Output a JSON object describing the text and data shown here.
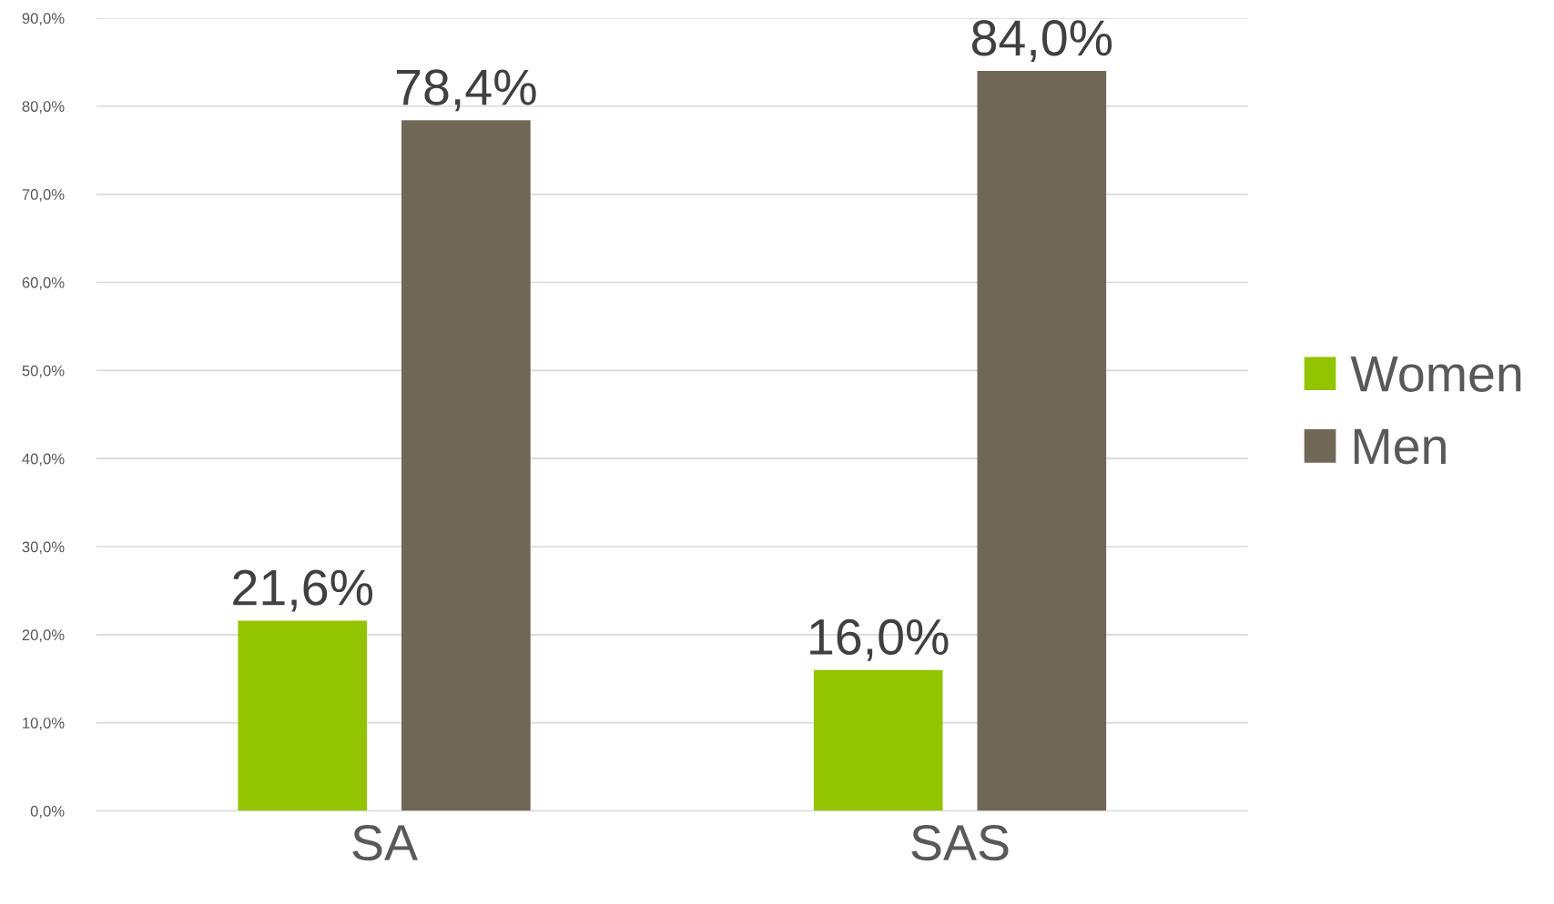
{
  "chart_data": {
    "type": "bar",
    "categories": [
      "SA",
      "SAS"
    ],
    "series": [
      {
        "name": "Women",
        "color": "#92c400",
        "values": [
          21.6,
          16.0
        ],
        "value_labels": [
          "21,6%",
          "16,0%"
        ]
      },
      {
        "name": "Men",
        "color": "#716757",
        "values": [
          78.4,
          84.0
        ],
        "value_labels": [
          "78,4%",
          "84,0%"
        ]
      }
    ],
    "ylim": [
      0,
      90
    ],
    "yticks": [
      {
        "value": 0,
        "label": "0,0%"
      },
      {
        "value": 10,
        "label": "10,0%"
      },
      {
        "value": 20,
        "label": "20,0%"
      },
      {
        "value": 30,
        "label": "30,0%"
      },
      {
        "value": 40,
        "label": "40,0%"
      },
      {
        "value": 50,
        "label": "50,0%"
      },
      {
        "value": 60,
        "label": "60,0%"
      },
      {
        "value": 70,
        "label": "70,0%"
      },
      {
        "value": 80,
        "label": "80,0%"
      },
      {
        "value": 90,
        "label": "90,0%"
      }
    ],
    "grid": "y",
    "legend": "right"
  }
}
